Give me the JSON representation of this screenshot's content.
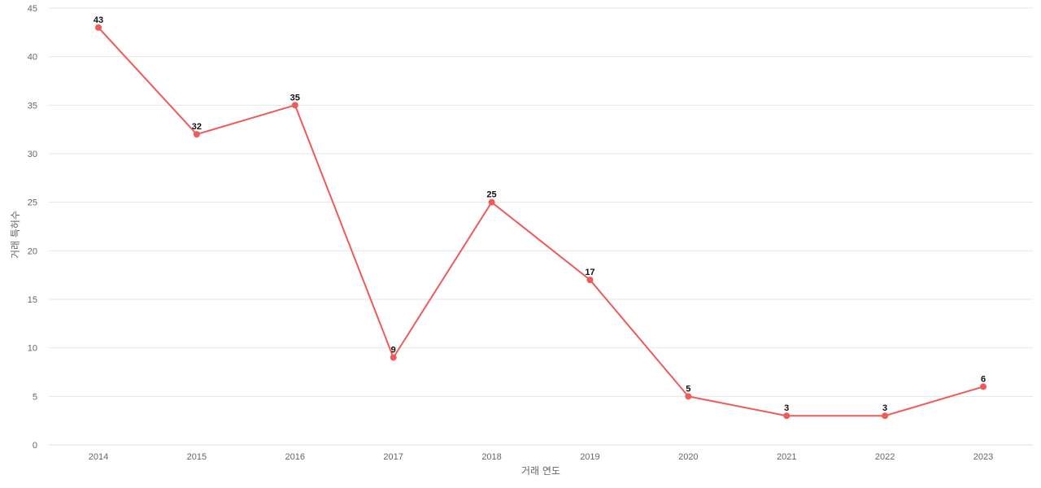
{
  "chart_data": {
    "type": "line",
    "categories": [
      "2014",
      "2015",
      "2016",
      "2017",
      "2018",
      "2019",
      "2020",
      "2021",
      "2022",
      "2023"
    ],
    "values": [
      43,
      32,
      35,
      9,
      25,
      17,
      5,
      3,
      3,
      6
    ],
    "xlabel": "거래 연도",
    "ylabel": "거래 특허수",
    "ylim": [
      0,
      45
    ],
    "yticks": [
      0,
      5,
      10,
      15,
      20,
      25,
      30,
      35,
      40,
      45
    ],
    "grid": true,
    "line_color": "#ef5a5a",
    "data_labels": true
  }
}
